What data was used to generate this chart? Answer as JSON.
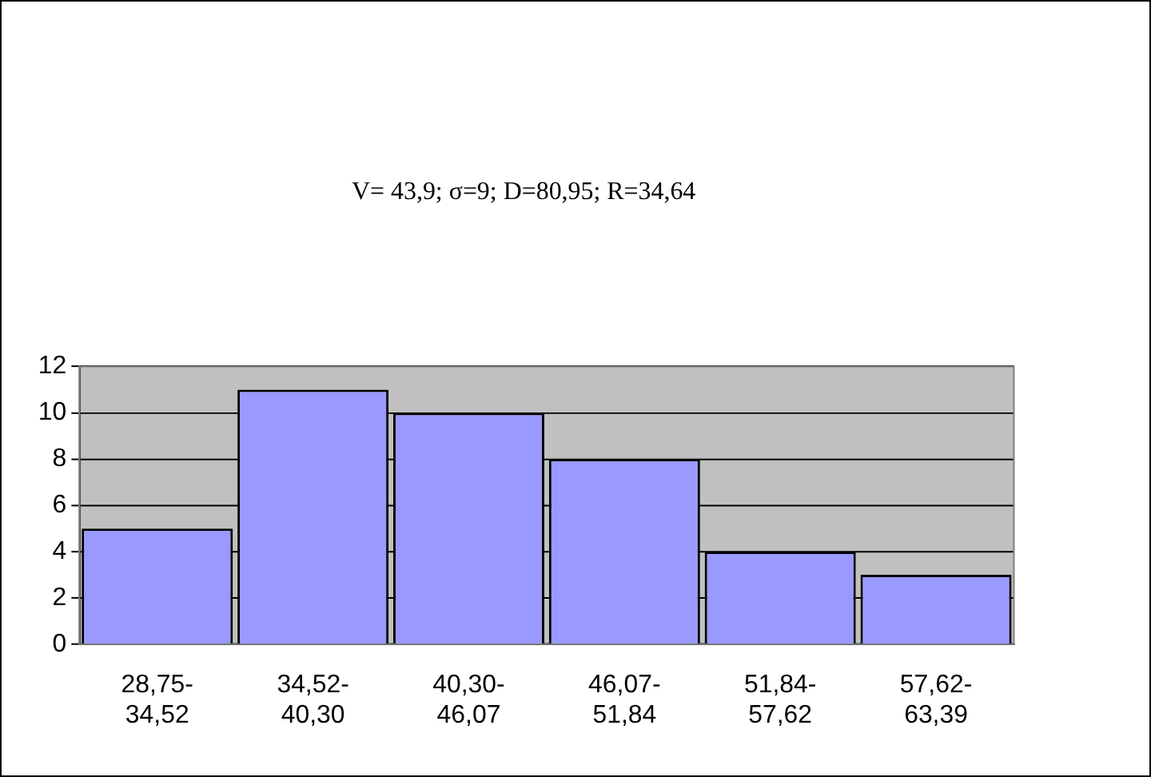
{
  "chart_data": {
    "type": "bar",
    "title": "V= 43,9; σ=9; D=80,95; R=34,64",
    "categories": [
      "28,75-34,52",
      "34,52-40,30",
      "40,30-46,07",
      "46,07-51,84",
      "51,84-57,62",
      "57,62-63,39"
    ],
    "values": [
      5,
      11,
      10,
      8,
      4,
      3
    ],
    "color": "#9999ff",
    "ylim": [
      0,
      12
    ],
    "yticks": [
      0,
      2,
      4,
      6,
      8,
      10,
      12
    ],
    "grid": "y",
    "legend": false
  }
}
